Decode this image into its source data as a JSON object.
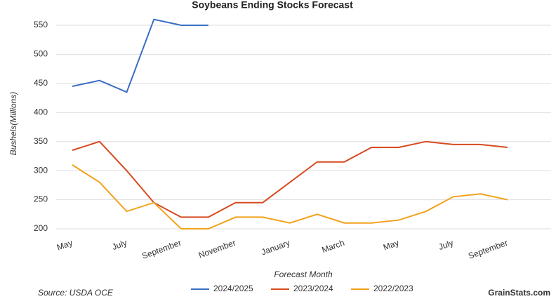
{
  "chart_data": {
    "type": "line",
    "title": "Soybeans Ending Stocks Forecast",
    "x_label": "Forecast Month",
    "y_label": "Bushels(Millions)",
    "source": "Source: USDA OCE",
    "brand": "GrainStats.com",
    "categories": [
      "May",
      null,
      "July",
      null,
      "September",
      null,
      "November",
      null,
      "January",
      null,
      "March",
      null,
      "May",
      null,
      "July",
      null,
      "September"
    ],
    "series": [
      {
        "name": "2024/2025",
        "color": "#3a6fc4",
        "values": [
          445,
          455,
          435,
          560,
          550,
          550,
          null,
          null,
          null,
          null,
          null,
          null,
          null,
          null,
          null,
          null,
          null
        ]
      },
      {
        "name": "2023/2024",
        "color": "#d84a1f",
        "values": [
          335,
          350,
          300,
          245,
          220,
          220,
          245,
          245,
          280,
          315,
          315,
          340,
          340,
          350,
          345,
          345,
          340
        ]
      },
      {
        "name": "2022/2023",
        "color": "#f2a21a",
        "values": [
          310,
          280,
          230,
          245,
          200,
          200,
          220,
          220,
          210,
          225,
          210,
          210,
          215,
          230,
          255,
          260,
          250
        ]
      }
    ],
    "ylim": [
      200,
      570
    ],
    "yticks": [
      200,
      250,
      300,
      350,
      400,
      450,
      500,
      550
    ],
    "grid": true
  }
}
